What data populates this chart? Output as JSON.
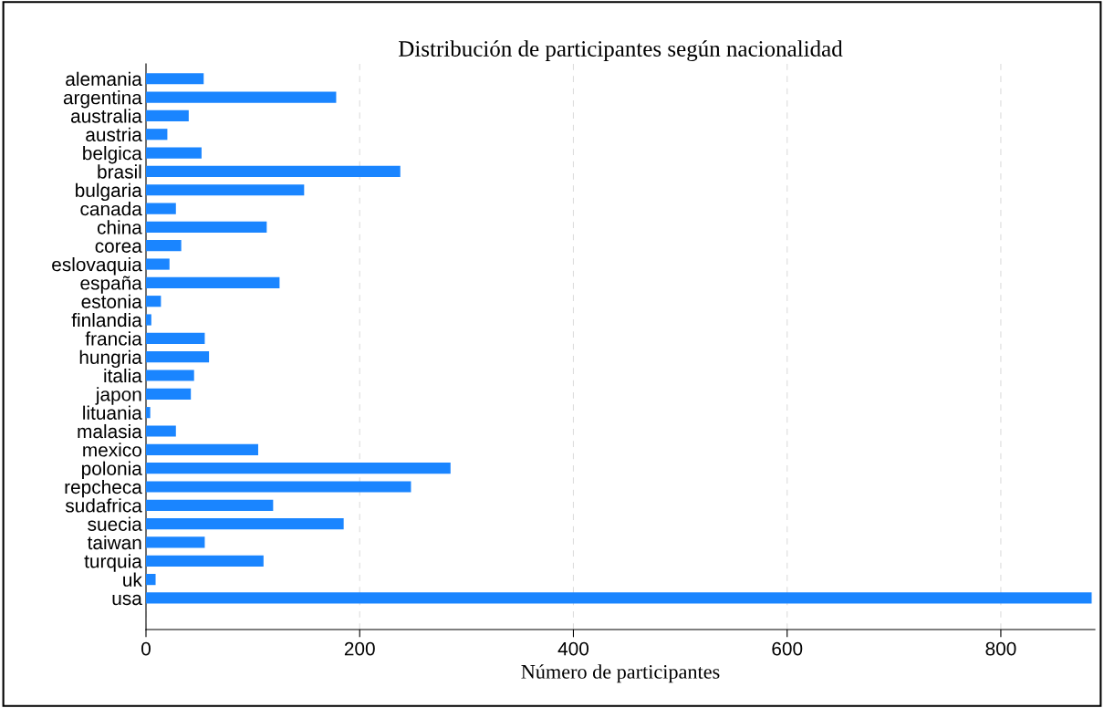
{
  "chart_data": {
    "type": "bar",
    "orientation": "horizontal",
    "title": "Distribución de participantes según nacionalidad",
    "xlabel": "Número de participantes",
    "categories": [
      "alemania",
      "argentina",
      "australia",
      "austria",
      "belgica",
      "brasil",
      "bulgaria",
      "canada",
      "china",
      "corea",
      "eslovaquia",
      "españa",
      "estonia",
      "finlandia",
      "francia",
      "hungria",
      "italia",
      "japon",
      "lituania",
      "malasia",
      "mexico",
      "polonia",
      "repcheca",
      "sudafrica",
      "suecia",
      "taiwan",
      "turquia",
      "uk",
      "usa"
    ],
    "values": [
      54,
      178,
      40,
      20,
      52,
      238,
      148,
      28,
      113,
      33,
      22,
      125,
      14,
      5,
      55,
      59,
      45,
      42,
      4,
      28,
      105,
      285,
      248,
      119,
      185,
      55,
      110,
      9,
      885
    ],
    "color": "#1a85ff",
    "xlim": [
      0,
      888
    ],
    "xticks": [
      0,
      200,
      400,
      600,
      800
    ],
    "grid": "x"
  }
}
